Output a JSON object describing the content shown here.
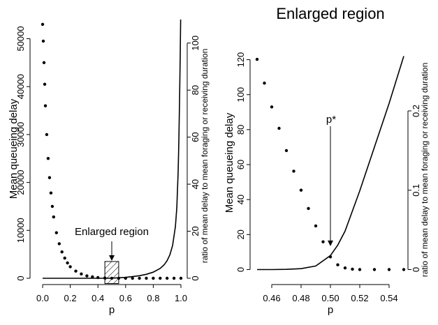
{
  "chart_data": [
    {
      "type": "line",
      "xlabel": "p",
      "ylabel": "Mean queueing delay",
      "y2label": "ratio of mean delay to mean foraging or receiving duration",
      "xlim": [
        0.0,
        1.0
      ],
      "ylim": [
        0,
        54000
      ],
      "y2lim": [
        0,
        110
      ],
      "x_ticks": [
        0.0,
        0.2,
        0.4,
        0.6,
        0.8,
        1.0
      ],
      "x_tick_labels": [
        "0.0",
        "0.2",
        "0.4",
        "0.6",
        "0.8",
        "1.0"
      ],
      "y_ticks": [
        0,
        10000,
        20000,
        30000,
        40000,
        50000
      ],
      "y_tick_labels": [
        "0",
        "10000",
        "20000",
        "30000",
        "40000",
        "50000"
      ],
      "y2_ticks": [
        0,
        20,
        40,
        60,
        80,
        100
      ],
      "y2_tick_labels": [
        "0",
        "20",
        "40",
        "60",
        "80",
        "100"
      ],
      "annotation": "Enlarged region",
      "highlight_region": {
        "x": [
          0.45,
          0.55
        ],
        "y": [
          -1100,
          3500
        ]
      },
      "series": [
        {
          "style": "dotted",
          "axis": "left",
          "x": [
            0.0,
            0.005,
            0.01,
            0.015,
            0.02,
            0.03,
            0.04,
            0.05,
            0.06,
            0.07,
            0.08,
            0.1,
            0.12,
            0.14,
            0.16,
            0.18,
            0.2,
            0.24,
            0.28,
            0.32,
            0.36,
            0.4,
            0.45,
            0.5,
            0.55,
            0.6,
            0.65,
            0.7,
            0.75,
            0.8,
            0.85,
            0.9,
            0.95,
            1.0
          ],
          "y": [
            53000,
            49500,
            45000,
            40500,
            36000,
            30000,
            25000,
            21000,
            17800,
            15000,
            12800,
            9500,
            7200,
            5500,
            4200,
            3200,
            2400,
            1500,
            900,
            500,
            300,
            150,
            60,
            10,
            0,
            0,
            0,
            0,
            0,
            0,
            0,
            0,
            0,
            0
          ]
        },
        {
          "style": "solid",
          "axis": "right",
          "x": [
            0.0,
            0.3,
            0.45,
            0.5,
            0.55,
            0.6,
            0.65,
            0.7,
            0.75,
            0.8,
            0.85,
            0.88,
            0.9,
            0.92,
            0.94,
            0.96,
            0.97,
            0.98,
            0.985,
            0.99,
            0.995,
            0.998
          ],
          "y": [
            0,
            0,
            0.005,
            0.05,
            0.2,
            0.4,
            0.7,
            1.1,
            1.7,
            2.6,
            4.2,
            5.8,
            7.5,
            10,
            14,
            22,
            30,
            45,
            58,
            75,
            95,
            110
          ]
        }
      ]
    },
    {
      "type": "line",
      "title": "Enlarged region",
      "xlabel": "p",
      "ylabel": "Mean queueing delay",
      "y2label": "ratio of mean delay to mean foraging or receiving duration",
      "xlim": [
        0.45,
        0.55
      ],
      "ylim": [
        -5,
        127
      ],
      "y2lim": [
        -0.011,
        0.28
      ],
      "x_ticks": [
        0.46,
        0.48,
        0.5,
        0.52,
        0.54
      ],
      "x_tick_labels": [
        "0.46",
        "0.48",
        "0.50",
        "0.52",
        "0.54"
      ],
      "y_ticks": [
        0,
        20,
        40,
        60,
        80,
        100,
        120
      ],
      "y_tick_labels": [
        "0",
        "20",
        "40",
        "60",
        "80",
        "100",
        "120"
      ],
      "y2_ticks": [
        0,
        0.1,
        0.2
      ],
      "y2_tick_labels": [
        "0",
        "0.1",
        "0.2"
      ],
      "annotation": "p*",
      "annotation_arrow": {
        "x": 0.5,
        "y_from": 82,
        "y_to": 13
      },
      "series": [
        {
          "style": "dotted",
          "axis": "right",
          "x": [
            0.45,
            0.455,
            0.46,
            0.465,
            0.47,
            0.475,
            0.48,
            0.485,
            0.49,
            0.495,
            0.5,
            0.505,
            0.51,
            0.515,
            0.52,
            0.53,
            0.54,
            0.55
          ],
          "y": [
            0.265,
            0.235,
            0.205,
            0.178,
            0.15,
            0.124,
            0.1,
            0.077,
            0.055,
            0.035,
            0.016,
            0.006,
            0.002,
            0.0005,
            0,
            0,
            0,
            0
          ]
        },
        {
          "style": "solid",
          "axis": "left",
          "x": [
            0.45,
            0.46,
            0.47,
            0.48,
            0.49,
            0.5,
            0.505,
            0.51,
            0.52,
            0.53,
            0.54,
            0.55
          ],
          "y": [
            0,
            0,
            0.1,
            0.5,
            2,
            8,
            14,
            22,
            45,
            70,
            95,
            122
          ]
        }
      ]
    }
  ]
}
